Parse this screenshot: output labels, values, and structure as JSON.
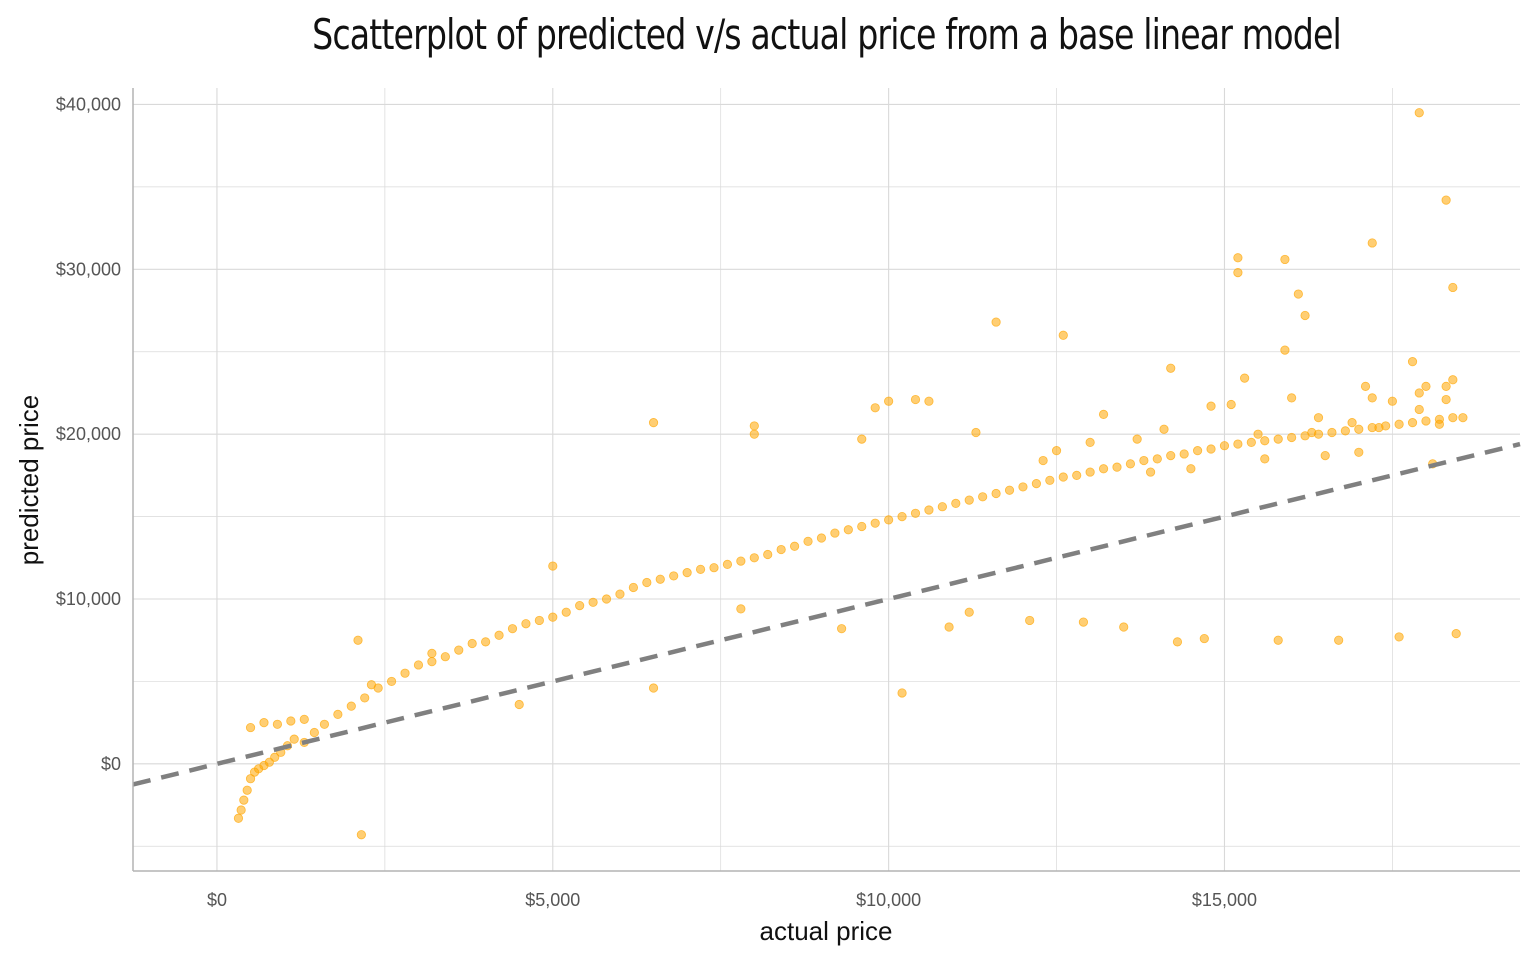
{
  "chart_data": {
    "type": "scatter",
    "title": "Scatterplot of predicted v/s actual price from a base linear model",
    "xlabel": "actual price",
    "ylabel": "predicted price",
    "xlim": [
      -1250,
      19400
    ],
    "ylim": [
      -6500,
      41000
    ],
    "x_ticks": [
      0,
      5000,
      10000,
      15000
    ],
    "x_tick_labels": [
      "$0",
      "$5,000",
      "$10,000",
      "$15,000"
    ],
    "y_ticks": [
      0,
      10000,
      20000,
      30000,
      40000
    ],
    "y_tick_labels": [
      "$0",
      "$10,000",
      "$20,000",
      "$30,000",
      "$40,000"
    ],
    "grid": true,
    "colors": {
      "points": "#FFA500",
      "reference_line": "#808080",
      "grid": "#d9d9d9",
      "axis": "#b3b3b3"
    },
    "reference_line": {
      "type": "identity",
      "slope": 1,
      "intercept": 0,
      "style": "dashed"
    },
    "series": [
      {
        "points_x": [
          320,
          360,
          400,
          450,
          500,
          560,
          620,
          700,
          780,
          860,
          950,
          1050,
          1150,
          1300,
          1450,
          1600,
          1800,
          2000,
          2200,
          2400,
          2600,
          2800,
          3000,
          3200,
          3400,
          3600,
          3800,
          4000,
          4200,
          4400,
          4600,
          4800,
          5000,
          5200,
          5400,
          5600,
          5800,
          6000,
          6200,
          6400,
          6600,
          6800,
          7000,
          7200,
          7400,
          7600,
          7800,
          8000,
          8200,
          8400,
          8600,
          8800,
          9000,
          9200,
          9400,
          9600,
          9800,
          10000,
          10200,
          10400,
          10600,
          10800,
          11000,
          11200,
          11400,
          11600,
          11800,
          12000,
          12200,
          12400,
          12600,
          12800,
          13000,
          13200,
          13400,
          13600,
          13800,
          14000,
          14200,
          14400,
          14600,
          14800,
          15000,
          15200,
          15400,
          15600,
          15800,
          16000,
          16200,
          16400,
          16600,
          16800,
          17000,
          17200,
          17400,
          17600,
          17800,
          18000,
          18200,
          18400,
          18550,
          500,
          700,
          900,
          1100,
          1300,
          2100,
          2300,
          3200,
          4500,
          5000,
          6500,
          8000,
          8000,
          9800,
          10000,
          10400,
          10600,
          11600,
          12600,
          14200,
          15200,
          15200,
          15900,
          15900,
          16200,
          17200,
          17800,
          17900,
          18300,
          18400,
          18400,
          17900,
          18000,
          18300,
          15300,
          16000,
          16100,
          17100,
          17200,
          10200,
          2150,
          6500,
          12300,
          13200,
          11300,
          9600,
          14800,
          15100,
          16400,
          17500,
          17900,
          18300,
          13500,
          14700,
          12100,
          11200,
          7800,
          9300,
          10900,
          12900,
          14300,
          15800,
          16700,
          17600,
          18450,
          13900,
          14500,
          15600,
          16500,
          17000,
          18100,
          12500,
          13000,
          13700,
          14100,
          15500,
          16300,
          16900,
          17300,
          18200
        ],
        "points_y": [
          -3300,
          -2800,
          -2200,
          -1600,
          -900,
          -500,
          -300,
          -100,
          100,
          400,
          700,
          1100,
          1500,
          1300,
          1900,
          2400,
          3000,
          3500,
          4000,
          4600,
          5000,
          5500,
          6000,
          6200,
          6500,
          6900,
          7300,
          7400,
          7800,
          8200,
          8500,
          8700,
          8900,
          9200,
          9600,
          9800,
          10000,
          10300,
          10700,
          11000,
          11200,
          11400,
          11600,
          11800,
          11900,
          12100,
          12300,
          12500,
          12700,
          13000,
          13200,
          13500,
          13700,
          14000,
          14200,
          14400,
          14600,
          14800,
          15000,
          15200,
          15400,
          15600,
          15800,
          16000,
          16200,
          16400,
          16600,
          16800,
          17000,
          17200,
          17400,
          17500,
          17700,
          17900,
          18000,
          18200,
          18400,
          18500,
          18700,
          18800,
          19000,
          19100,
          19300,
          19400,
          19500,
          19600,
          19700,
          19800,
          19900,
          20000,
          20100,
          20200,
          20300,
          20400,
          20500,
          20600,
          20700,
          20800,
          20900,
          21000,
          21000,
          2200,
          2500,
          2400,
          2600,
          2700,
          7500,
          4800,
          6700,
          3600,
          12000,
          20700,
          20500,
          20000,
          21600,
          22000,
          22100,
          22000,
          26800,
          26000,
          24000,
          30700,
          29800,
          30600,
          25100,
          27200,
          31600,
          24400,
          39500,
          34200,
          28900,
          23300,
          22500,
          22900,
          22900,
          23400,
          22200,
          28500,
          22900,
          22200,
          4300,
          -4300,
          4600,
          18400,
          21200,
          20100,
          19700,
          21700,
          21800,
          21000,
          22000,
          21500,
          22100,
          8300,
          7600,
          8700,
          9200,
          9400,
          8200,
          8300,
          8600,
          7400,
          7500,
          7500,
          7700,
          7900,
          17700,
          17900,
          18500,
          18700,
          18900,
          18200,
          19000,
          19500,
          19700,
          20300,
          20000,
          20100,
          20700,
          20400,
          20600
        ]
      }
    ]
  }
}
